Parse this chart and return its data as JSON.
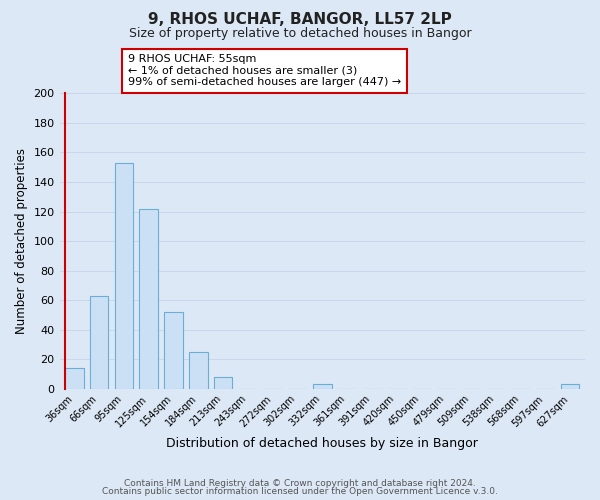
{
  "title": "9, RHOS UCHAF, BANGOR, LL57 2LP",
  "subtitle": "Size of property relative to detached houses in Bangor",
  "xlabel": "Distribution of detached houses by size in Bangor",
  "ylabel": "Number of detached properties",
  "bar_labels": [
    "36sqm",
    "66sqm",
    "95sqm",
    "125sqm",
    "154sqm",
    "184sqm",
    "213sqm",
    "243sqm",
    "272sqm",
    "302sqm",
    "332sqm",
    "361sqm",
    "391sqm",
    "420sqm",
    "450sqm",
    "479sqm",
    "509sqm",
    "538sqm",
    "568sqm",
    "597sqm",
    "627sqm"
  ],
  "bar_values": [
    14,
    63,
    153,
    122,
    52,
    25,
    8,
    0,
    0,
    0,
    3,
    0,
    0,
    0,
    0,
    0,
    0,
    0,
    0,
    0,
    3
  ],
  "bar_color": "#cce0f5",
  "bar_edge_color": "#6aaed6",
  "highlight_edge_color": "#cc0000",
  "ylim": [
    0,
    200
  ],
  "yticks": [
    0,
    20,
    40,
    60,
    80,
    100,
    120,
    140,
    160,
    180,
    200
  ],
  "annotation_title": "9 RHOS UCHAF: 55sqm",
  "annotation_line1": "← 1% of detached houses are smaller (3)",
  "annotation_line2": "99% of semi-detached houses are larger (447) →",
  "annotation_box_color": "#ffffff",
  "annotation_box_edge": "#cc0000",
  "grid_color": "#c8d8ea",
  "background_color": "#dce8f5",
  "footer_line1": "Contains HM Land Registry data © Crown copyright and database right 2024.",
  "footer_line2": "Contains public sector information licensed under the Open Government Licence v.3.0."
}
